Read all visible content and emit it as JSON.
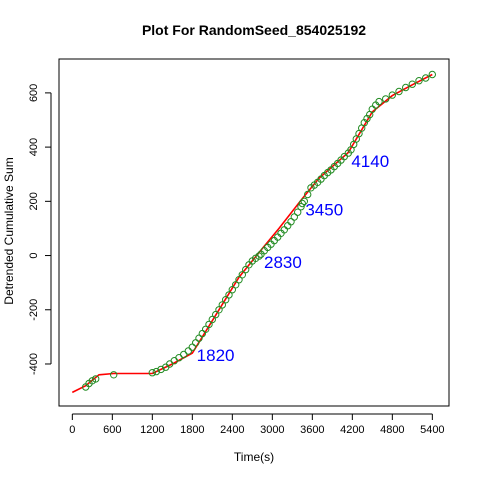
{
  "chart_data": {
    "type": "line",
    "title": "Plot For RandomSeed_854025192",
    "xlabel": "Time(s)",
    "ylabel": "Detrended Cumulative Sum",
    "xlim": [
      -200,
      5650
    ],
    "ylim": [
      -555,
      725
    ],
    "x_ticks": [
      0,
      600,
      1200,
      1800,
      2400,
      3000,
      3600,
      4200,
      4800,
      5400
    ],
    "y_ticks": [
      -400,
      -200,
      0,
      200,
      400,
      600
    ],
    "x_tick_labels": [
      "0",
      "600",
      "1200",
      "1800",
      "2400",
      "3000",
      "3600",
      "4200",
      "4800",
      "5400"
    ],
    "y_tick_labels": [
      "-400",
      "-200",
      "0",
      "200",
      "400",
      "600"
    ],
    "grid": false,
    "series": [
      {
        "color": "#ff0000",
        "x": [
          0,
          200,
          300,
          400,
          620,
          1200,
          1500,
          1800,
          1900,
          2200,
          2500,
          2830,
          3100,
          3450,
          3700,
          4140,
          4500,
          4800,
          5100,
          5400
        ],
        "y": [
          -505,
          -480,
          -460,
          -440,
          -435,
          -435,
          -400,
          -360,
          -320,
          -200,
          -80,
          20,
          100,
          210,
          285,
          380,
          530,
          590,
          630,
          668
        ]
      },
      {
        "color": "#228b22",
        "marker": "open-circle",
        "x": [
          200,
          250,
          300,
          350,
          620,
          1200,
          1260,
          1330,
          1400,
          1460,
          1530,
          1600,
          1670,
          1740,
          1800,
          1850,
          1900,
          1950,
          2000,
          2050,
          2100,
          2150,
          2200,
          2250,
          2300,
          2350,
          2400,
          2450,
          2500,
          2550,
          2600,
          2650,
          2700,
          2750,
          2800,
          2830,
          2880,
          2930,
          2980,
          3030,
          3080,
          3130,
          3180,
          3230,
          3280,
          3330,
          3380,
          3430,
          3450,
          3480,
          3530,
          3580,
          3630,
          3680,
          3730,
          3780,
          3830,
          3880,
          3930,
          3980,
          4030,
          4080,
          4140,
          4180,
          4220,
          4260,
          4300,
          4340,
          4380,
          4420,
          4460,
          4500,
          4550,
          4600,
          4700,
          4800,
          4900,
          5000,
          5100,
          5200,
          5300,
          5400
        ],
        "y": [
          -485,
          -472,
          -462,
          -455,
          -440,
          -432,
          -428,
          -420,
          -412,
          -400,
          -388,
          -377,
          -365,
          -352,
          -338,
          -322,
          -305,
          -288,
          -272,
          -254,
          -236,
          -218,
          -200,
          -182,
          -163,
          -145,
          -126,
          -108,
          -89,
          -71,
          -52,
          -34,
          -20,
          -10,
          -2,
          5,
          18,
          30,
          42,
          55,
          68,
          82,
          95,
          110,
          125,
          142,
          160,
          180,
          192,
          200,
          225,
          250,
          260,
          270,
          282,
          295,
          306,
          316,
          328,
          340,
          352,
          365,
          378,
          390,
          410,
          430,
          450,
          470,
          490,
          505,
          520,
          540,
          555,
          568,
          578,
          592,
          605,
          620,
          632,
          645,
          655,
          668
        ]
      }
    ],
    "annotations": [
      {
        "text": "1820",
        "x": 1820,
        "y": -338
      },
      {
        "text": "2830",
        "x": 2830,
        "y": 5
      },
      {
        "text": "3450",
        "x": 3450,
        "y": 200
      },
      {
        "text": "4140",
        "x": 4140,
        "y": 378
      }
    ]
  }
}
